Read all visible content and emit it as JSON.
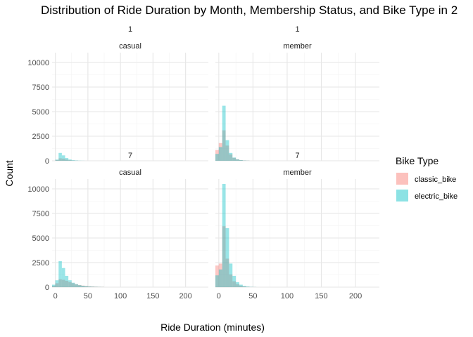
{
  "chart_data": {
    "type": "bar",
    "subtype": "faceted-histogram",
    "title": "Distribution of Ride Duration by Month, Membership Status, and Bike Type in 2",
    "xlabel": "Ride Duration (minutes)",
    "ylabel": "Count",
    "xlim": [
      -5,
      235
    ],
    "ylim": [
      0,
      11000
    ],
    "x_ticks": [
      0,
      50,
      100,
      150,
      200
    ],
    "y_ticks": [
      0,
      2500,
      5000,
      7500,
      10000
    ],
    "bin_width": 5,
    "grid": true,
    "legend": {
      "title": "Bike Type",
      "position": "right",
      "entries": [
        {
          "name": "classic_bike",
          "color": "#F8766D"
        },
        {
          "name": "electric_bike",
          "color": "#00BFC4"
        }
      ]
    },
    "facets": [
      {
        "month": "1",
        "member_type": "casual",
        "series": [
          {
            "name": "classic_bike",
            "x": [
              0,
              5,
              10,
              15,
              20,
              25,
              30
            ],
            "values": [
              80,
              250,
              220,
              120,
              60,
              30,
              15
            ]
          },
          {
            "name": "electric_bike",
            "x": [
              0,
              5,
              10,
              15,
              20,
              25,
              30,
              35,
              40
            ],
            "values": [
              120,
              800,
              550,
              280,
              130,
              60,
              30,
              15,
              8
            ]
          }
        ]
      },
      {
        "month": "1",
        "member_type": "member",
        "series": [
          {
            "name": "classic_bike",
            "x": [
              -5,
              0,
              5,
              10,
              15,
              20,
              25,
              30,
              35,
              40
            ],
            "values": [
              1100,
              1800,
              3100,
              1550,
              650,
              300,
              150,
              70,
              35,
              15
            ]
          },
          {
            "name": "electric_bike",
            "x": [
              -5,
              0,
              5,
              10,
              15,
              20,
              25,
              30,
              35,
              40
            ],
            "values": [
              700,
              1400,
              5600,
              2100,
              800,
              330,
              150,
              70,
              30,
              15
            ]
          }
        ]
      },
      {
        "month": "7",
        "member_type": "casual",
        "series": [
          {
            "name": "classic_bike",
            "x": [
              -5,
              0,
              5,
              10,
              15,
              20,
              25,
              30,
              35,
              40,
              45,
              50,
              55,
              60,
              65,
              70
            ],
            "values": [
              150,
              400,
              800,
              750,
              650,
              500,
              400,
              300,
              220,
              160,
              120,
              90,
              70,
              50,
              35,
              25
            ]
          },
          {
            "name": "electric_bike",
            "x": [
              -5,
              0,
              5,
              10,
              15,
              20,
              25,
              30,
              35,
              40,
              45,
              50,
              55,
              60,
              65,
              70
            ],
            "values": [
              250,
              700,
              2650,
              1950,
              1150,
              700,
              450,
              300,
              200,
              140,
              100,
              70,
              50,
              35,
              25,
              15
            ]
          }
        ]
      },
      {
        "month": "7",
        "member_type": "member",
        "series": [
          {
            "name": "classic_bike",
            "x": [
              -5,
              0,
              5,
              10,
              15,
              20,
              25,
              30,
              35,
              40,
              45,
              50
            ],
            "values": [
              2200,
              2400,
              6200,
              2900,
              1300,
              600,
              300,
              150,
              80,
              40,
              20,
              10
            ]
          },
          {
            "name": "electric_bike",
            "x": [
              -5,
              0,
              5,
              10,
              15,
              20,
              25,
              30,
              35,
              40,
              45,
              50
            ],
            "values": [
              1200,
              1800,
              10500,
              6000,
              2400,
              1150,
              500,
              250,
              120,
              60,
              30,
              15
            ]
          }
        ]
      }
    ]
  }
}
